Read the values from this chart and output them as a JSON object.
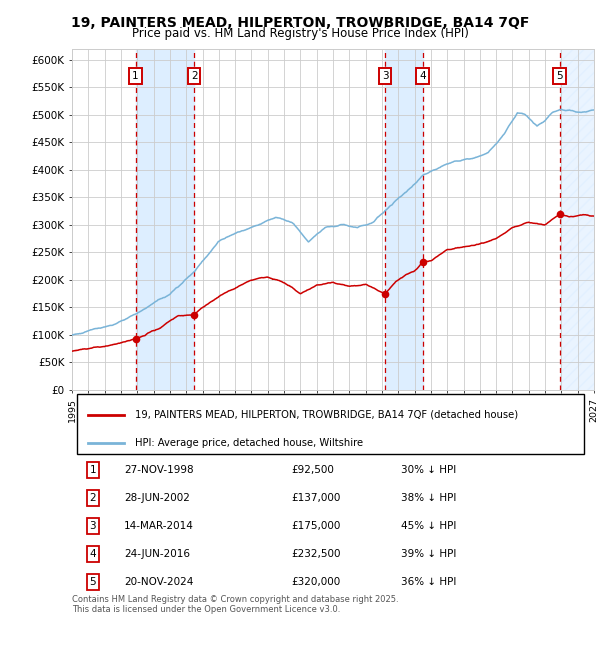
{
  "title": "19, PAINTERS MEAD, HILPERTON, TROWBRIDGE, BA14 7QF",
  "subtitle": "Price paid vs. HM Land Registry's House Price Index (HPI)",
  "title_fontsize": 10,
  "subtitle_fontsize": 8.5,
  "ylim": [
    0,
    620000
  ],
  "yticks": [
    0,
    50000,
    100000,
    150000,
    200000,
    250000,
    300000,
    350000,
    400000,
    450000,
    500000,
    550000,
    600000
  ],
  "ytick_labels": [
    "£0",
    "£50K",
    "£100K",
    "£150K",
    "£200K",
    "£250K",
    "£300K",
    "£350K",
    "£400K",
    "£450K",
    "£500K",
    "£550K",
    "£600K"
  ],
  "xmin": 1995.0,
  "xmax": 2027.0,
  "hpi_color": "#7ab4d8",
  "price_color": "#cc0000",
  "sale_marker_color": "#cc0000",
  "vline_color": "#cc0000",
  "shade_color": "#ddeeff",
  "grid_color": "#cccccc",
  "background_color": "#ffffff",
  "legend_items": [
    "19, PAINTERS MEAD, HILPERTON, TROWBRIDGE, BA14 7QF (detached house)",
    "HPI: Average price, detached house, Wiltshire"
  ],
  "sale_dates": [
    1998.9,
    2002.49,
    2014.2,
    2016.49,
    2024.89
  ],
  "sale_prices": [
    92500,
    137000,
    175000,
    232500,
    320000
  ],
  "sale_labels": [
    "1",
    "2",
    "3",
    "4",
    "5"
  ],
  "sale_date_strings": [
    "27-NOV-1998",
    "28-JUN-2002",
    "14-MAR-2014",
    "24-JUN-2016",
    "20-NOV-2024"
  ],
  "sale_hpi_pct": [
    "30% ↓ HPI",
    "38% ↓ HPI",
    "45% ↓ HPI",
    "39% ↓ HPI",
    "36% ↓ HPI"
  ],
  "sale_price_strings": [
    "£92,500",
    "£137,000",
    "£175,000",
    "£232,500",
    "£320,000"
  ],
  "footnote": "Contains HM Land Registry data © Crown copyright and database right 2025.\nThis data is licensed under the Open Government Licence v3.0.",
  "label_box_color": "#cc0000"
}
